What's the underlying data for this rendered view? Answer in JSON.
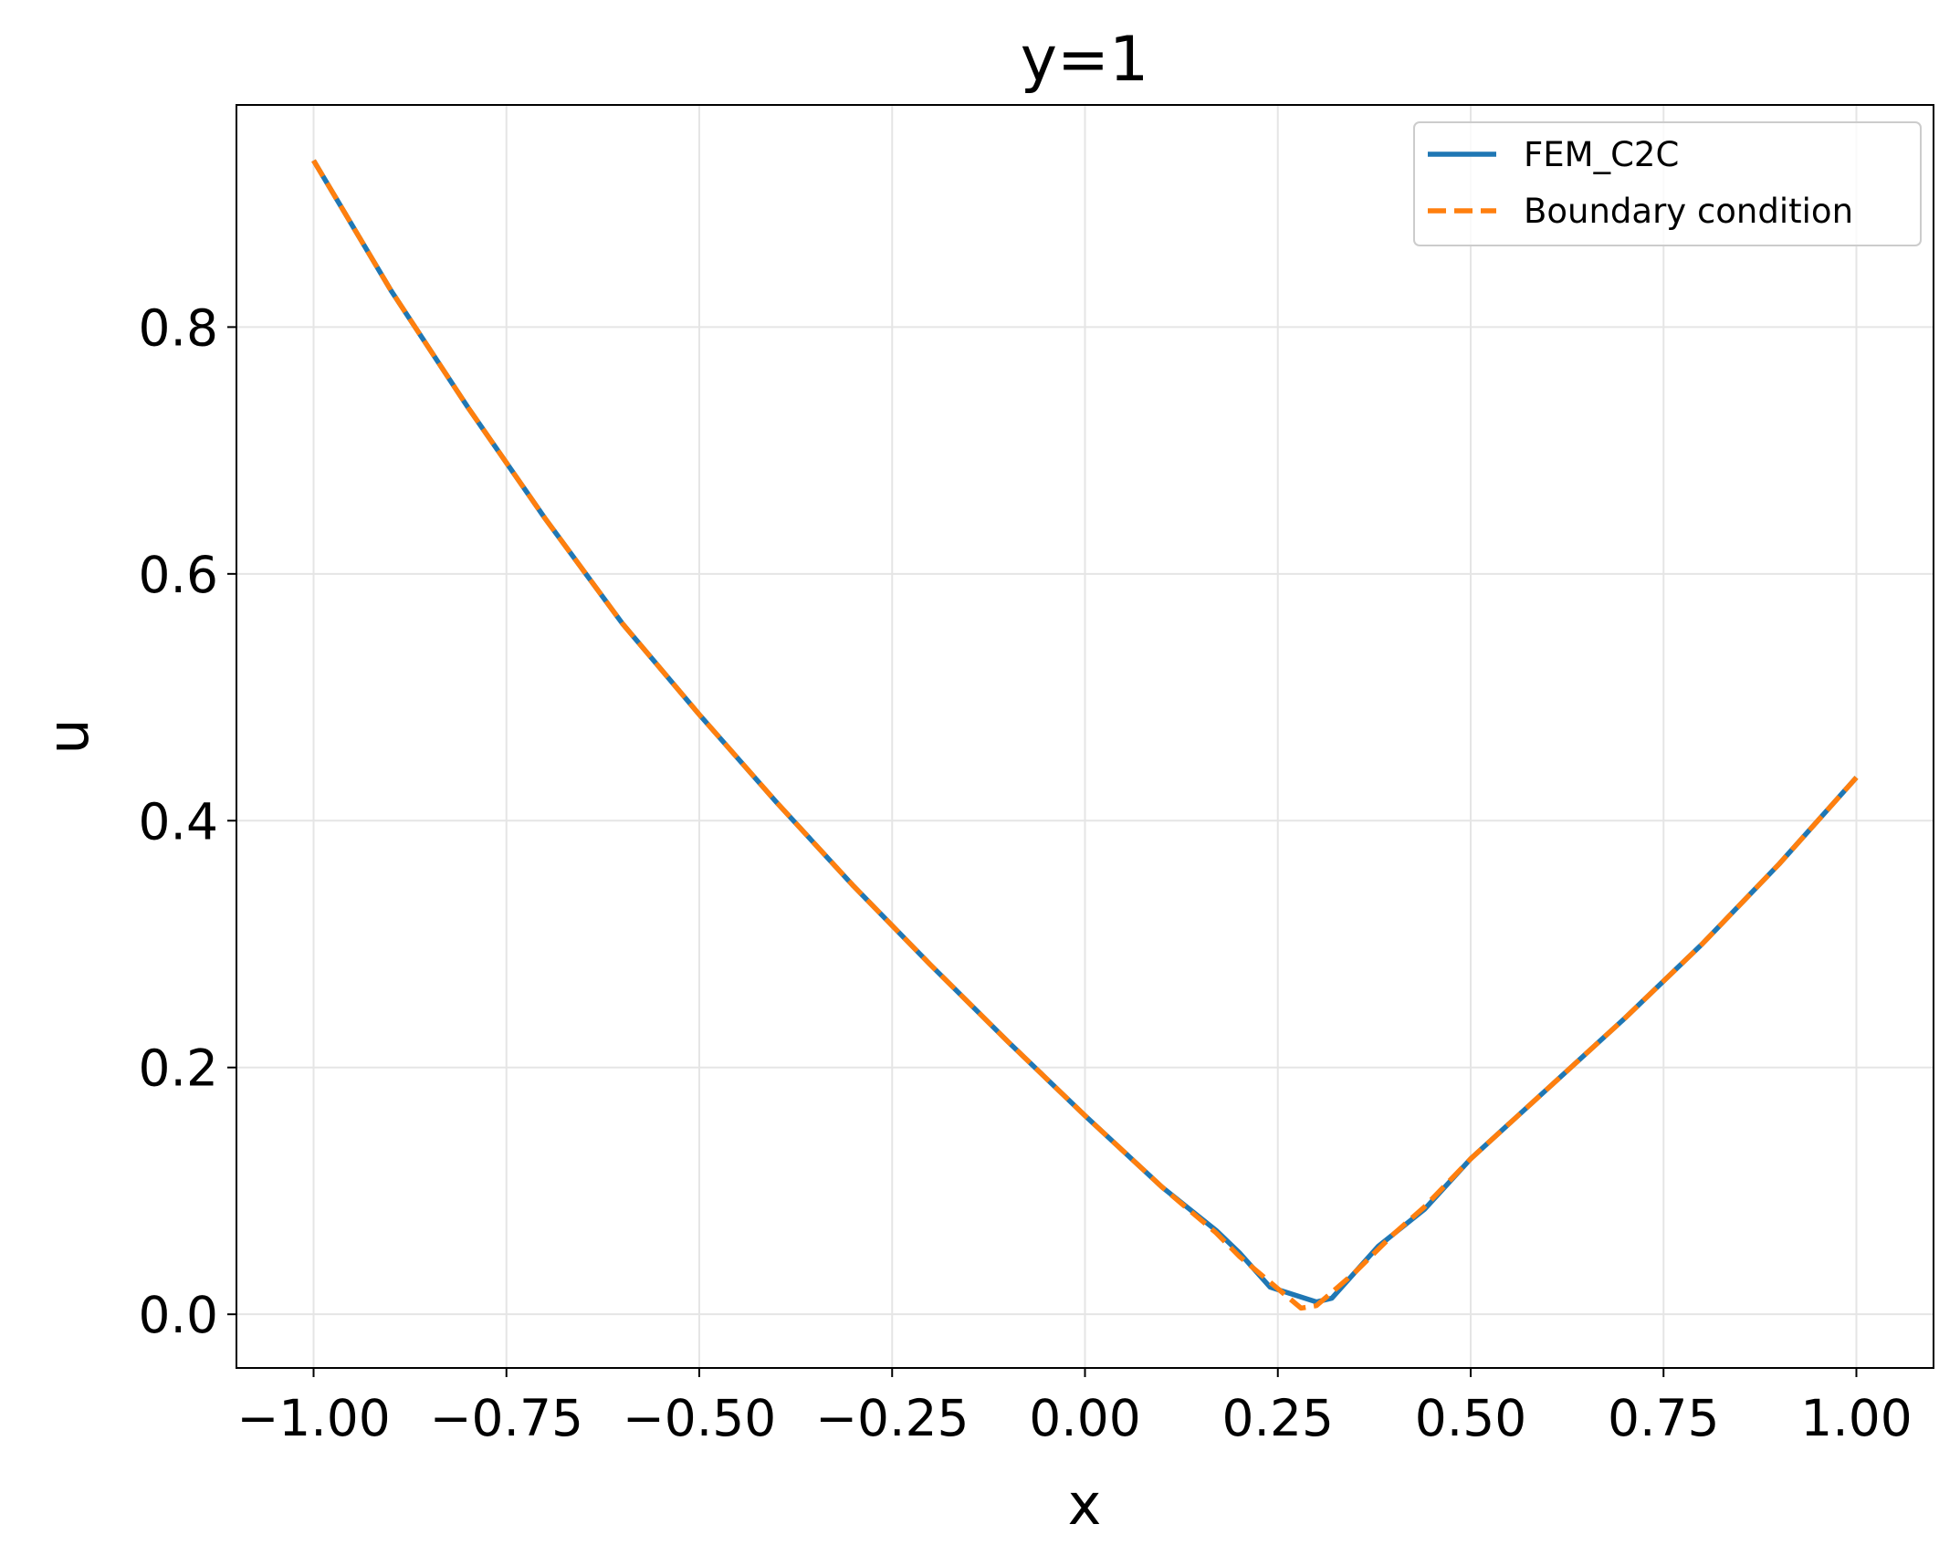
{
  "chart_data": {
    "type": "line",
    "title": "y=1",
    "xlabel": "x",
    "ylabel": "u",
    "series": [
      {
        "name": "FEM_C2C",
        "color": "#1f77b4",
        "dash": false,
        "x": [
          -1,
          -0.9,
          -0.8,
          -0.7,
          -0.6,
          -0.5,
          -0.4,
          -0.3,
          -0.2,
          -0.1,
          0,
          0.1,
          0.17,
          0.2,
          0.24,
          0.3,
          0.32,
          0.38,
          0.44,
          0.5,
          0.6,
          0.7,
          0.8,
          0.9,
          1
        ],
        "values": [
          0.935,
          0.83,
          0.735,
          0.645,
          0.56,
          0.486,
          0.415,
          0.347,
          0.283,
          0.221,
          0.161,
          0.103,
          0.068,
          0.05,
          0.022,
          0.01,
          0.013,
          0.055,
          0.085,
          0.126,
          0.183,
          0.24,
          0.3,
          0.365,
          0.435
        ]
      },
      {
        "name": "Boundary condition",
        "color": "#ff7f0e",
        "dash": true,
        "x": [
          -1,
          -0.9,
          -0.8,
          -0.7,
          -0.6,
          -0.5,
          -0.4,
          -0.3,
          -0.2,
          -0.1,
          0,
          0.1,
          0.17,
          0.2,
          0.28,
          0.3,
          0.35,
          0.4,
          0.44,
          0.5,
          0.6,
          0.7,
          0.8,
          0.9,
          1
        ],
        "values": [
          0.935,
          0.83,
          0.735,
          0.645,
          0.56,
          0.486,
          0.415,
          0.347,
          0.283,
          0.221,
          0.161,
          0.103,
          0.066,
          0.047,
          0.005,
          0.007,
          0.034,
          0.065,
          0.087,
          0.126,
          0.183,
          0.24,
          0.3,
          0.365,
          0.435
        ]
      }
    ],
    "xlim": [
      -1.1,
      1.1
    ],
    "xticks": [
      {
        "value": -1,
        "label": "−1.00"
      },
      {
        "value": -0.75,
        "label": "−0.75"
      },
      {
        "value": -0.5,
        "label": "−0.50"
      },
      {
        "value": -0.25,
        "label": "−0.25"
      },
      {
        "value": 0,
        "label": "0.00"
      },
      0.25,
      {
        "value": 0.5,
        "label": "0.50"
      },
      0.75,
      {
        "value": 1,
        "label": "1.00"
      }
    ],
    "ylim": [
      -0.0435,
      0.98
    ],
    "yticks": [
      {
        "value": 0,
        "label": "0.0"
      },
      0.2,
      0.4,
      0.6,
      0.8
    ],
    "grid": true,
    "legend": "upper right"
  }
}
